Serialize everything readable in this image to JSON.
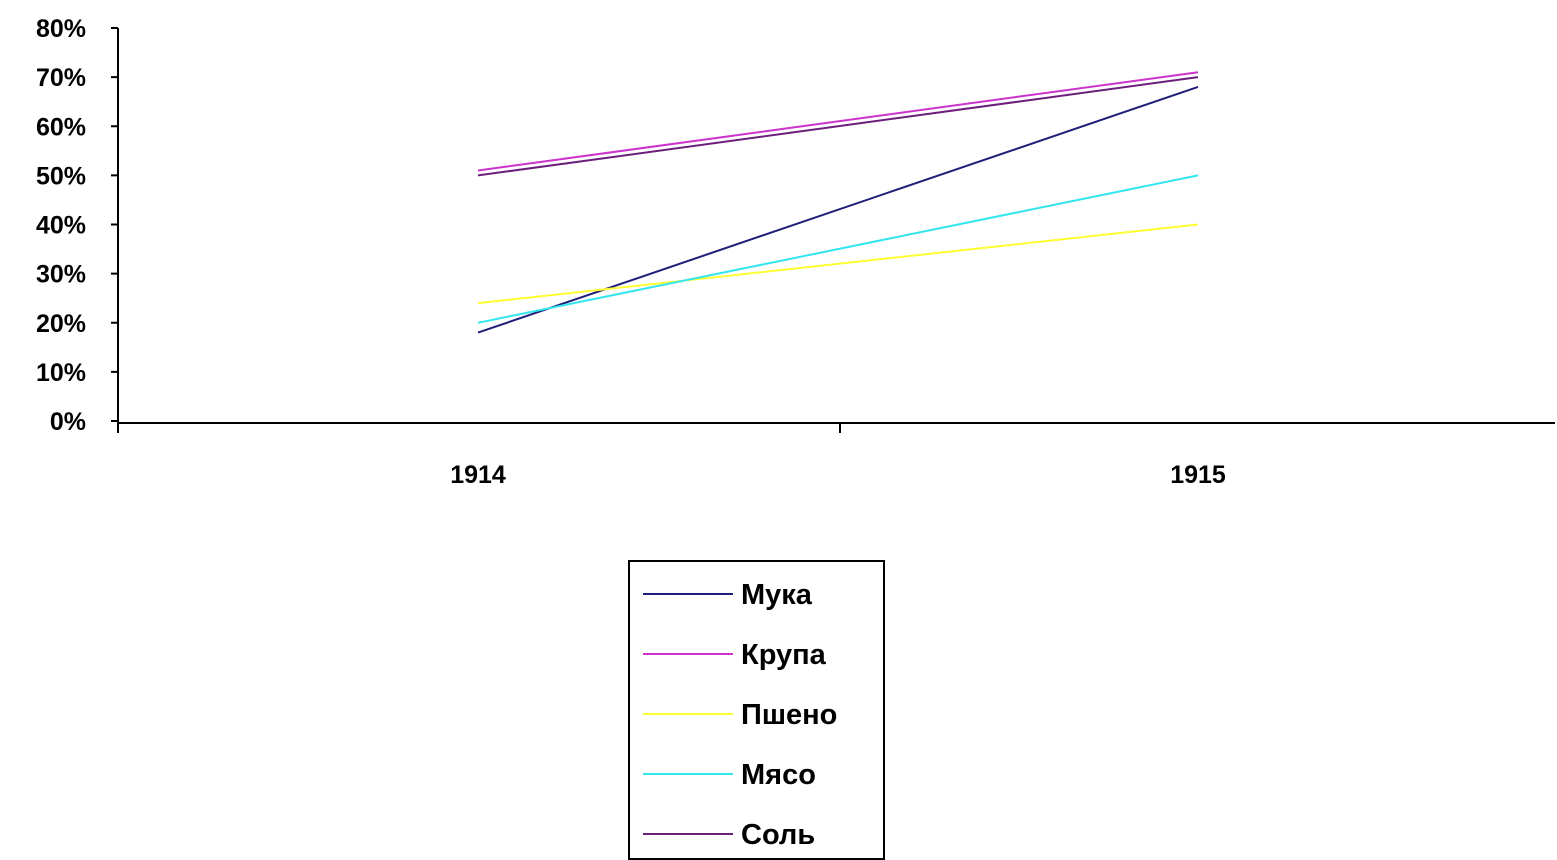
{
  "chart_data": {
    "type": "line",
    "title": "",
    "xlabel": "",
    "ylabel": "",
    "categories": [
      "1914",
      "1915"
    ],
    "ylim": [
      0,
      80
    ],
    "y_ticks": [
      "0%",
      "10%",
      "20%",
      "30%",
      "40%",
      "50%",
      "60%",
      "70%",
      "80%"
    ],
    "y_unit": "%",
    "grid": false,
    "legend_position": "bottom-center",
    "series": [
      {
        "name": "Мука",
        "color": "#1f1f7a",
        "values": [
          18,
          68
        ]
      },
      {
        "name": "Крупа",
        "color": "#cc33cc",
        "values": [
          51,
          71
        ]
      },
      {
        "name": "Пшено",
        "color": "#ffff33",
        "values": [
          24,
          40
        ]
      },
      {
        "name": "Мясо",
        "color": "#33e6ee",
        "values": [
          20,
          50
        ]
      },
      {
        "name": "Соль",
        "color": "#6b1f7a",
        "values": [
          50,
          70
        ]
      }
    ]
  }
}
